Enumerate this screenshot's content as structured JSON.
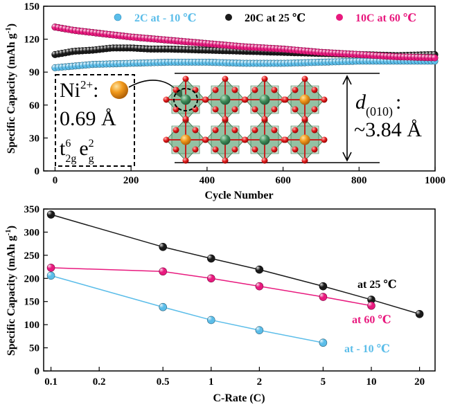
{
  "chart_data": [
    {
      "type": "scatter",
      "xlabel": "Cycle Number",
      "ylabel": "Specific Capacity (mAh g",
      "ylabel_sup": "-1",
      "ylabel_close": ")",
      "xlim": [
        -30,
        1000
      ],
      "ylim": [
        0,
        150
      ],
      "xticks": [
        0,
        200,
        400,
        600,
        800,
        1000
      ],
      "yticks": [
        0,
        30,
        60,
        90,
        120,
        150
      ],
      "legend_position": "top",
      "series": [
        {
          "name": "2C at - 10 ℃",
          "color": "#5bbde9",
          "x": [
            0,
            100,
            200,
            300,
            400,
            500,
            600,
            700,
            800,
            900,
            1000
          ],
          "y": [
            94,
            97,
            98,
            99,
            99,
            98,
            98,
            99,
            100,
            100,
            100
          ]
        },
        {
          "name": "20C at 25 ℃",
          "color": "#1a1a1a",
          "x": [
            0,
            50,
            100,
            150,
            200,
            250,
            300,
            400,
            500,
            600,
            700,
            800,
            900,
            1000
          ],
          "y": [
            106,
            109,
            110,
            112,
            112,
            111,
            111,
            110,
            109,
            108,
            107,
            106,
            105,
            106
          ]
        },
        {
          "name": "10C at 60 ℃",
          "color": "#e8197e",
          "x": [
            0,
            50,
            100,
            150,
            200,
            300,
            400,
            500,
            600,
            700,
            800,
            900,
            1000
          ],
          "y": [
            131,
            128,
            126,
            124,
            122,
            119,
            116,
            113,
            111,
            108,
            106,
            104,
            103
          ]
        }
      ],
      "inset": {
        "ion": "Ni",
        "ion_charge": "2+",
        "colon": ":",
        "radius": "0.69 Å",
        "config_t": "t",
        "config_t_sup": "6",
        "config_t_sub": "2g",
        "config_e": "e",
        "config_e_sup": "2",
        "config_e_sub": "g",
        "spacing_symbol": "d",
        "spacing_sub": "(010)",
        "spacing_colon": ":",
        "spacing_value": "~3.84 Å"
      }
    },
    {
      "type": "line",
      "xlabel": "C-Rate (C)",
      "ylabel": "Specific Capacity (mAh g",
      "ylabel_sup": "-1",
      "ylabel_close": ")",
      "xscale": "log",
      "xlim": [
        0.09,
        25
      ],
      "ylim": [
        0,
        350
      ],
      "xticks": [
        0.1,
        0.2,
        0.5,
        1,
        2,
        5,
        10,
        20
      ],
      "xtick_labels": [
        "0.1",
        "0.2",
        "0.5",
        "1",
        "2",
        "5",
        "10",
        "20"
      ],
      "yticks": [
        0,
        50,
        100,
        150,
        200,
        250,
        300,
        350
      ],
      "series": [
        {
          "name": "at 25 ℃",
          "color": "#1a1a1a",
          "x": [
            0.1,
            0.5,
            1,
            2,
            5,
            10,
            20
          ],
          "y": [
            338,
            268,
            243,
            219,
            183,
            154,
            123
          ]
        },
        {
          "name": "at  60 ℃",
          "color": "#e8197e",
          "x": [
            0.1,
            0.5,
            1,
            2,
            5,
            10
          ],
          "y": [
            223,
            215,
            200,
            183,
            160,
            141
          ]
        },
        {
          "name": "at  - 10 ℃",
          "color": "#5bbde9",
          "x": [
            0.1,
            0.5,
            1,
            2,
            5
          ],
          "y": [
            206,
            138,
            110,
            88,
            61
          ]
        }
      ]
    }
  ]
}
